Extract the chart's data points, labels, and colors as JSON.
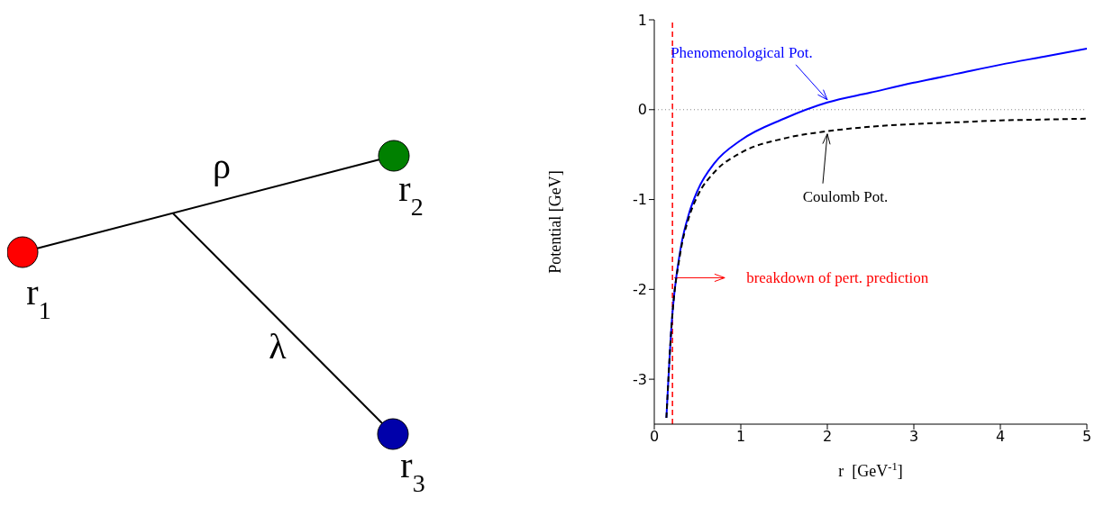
{
  "chart_data": [
    {
      "type": "other",
      "annotations": [
        "ρ",
        "λ",
        "r$_{1}$",
        "r$_{2}$",
        "r$_{3}$"
      ]
    },
    {
      "type": "line",
      "xlabel": "r  [GeV$^{-1}$]",
      "ylabel": "Potential    [GeV]",
      "x": [
        0.14,
        0.2,
        0.3,
        0.4,
        0.5,
        0.7,
        1,
        1.5,
        2,
        2.5,
        3,
        3.5,
        4,
        4.5,
        5
      ],
      "series": [
        {
          "name": "Phenomenological Pot.",
          "color": "#0000ff",
          "line_style": "solid",
          "values": [
            -3.43,
            -2.39,
            -1.57,
            -1.16,
            -0.9,
            -0.59,
            -0.34,
            -0.1,
            0.08,
            0.19,
            0.3,
            0.4,
            0.5,
            0.59,
            0.68
          ]
        },
        {
          "name": "Coulomb Pot.",
          "color": "#000000",
          "line_style": "dashed",
          "values": [
            -3.43,
            -2.4,
            -1.6,
            -1.2,
            -0.96,
            -0.69,
            -0.48,
            -0.32,
            -0.24,
            -0.19,
            -0.16,
            -0.14,
            -0.12,
            -0.11,
            -0.1
          ]
        }
      ],
      "xlim": [
        0,
        5
      ],
      "xticks": [
        0,
        1,
        2,
        3,
        4,
        5
      ],
      "ylim": [
        -3.5,
        1
      ],
      "yticks": [
        -3,
        -2,
        -1,
        0,
        1
      ],
      "marker": "none",
      "ref_lines": [
        {
          "axis": "x",
          "value": 0.21,
          "color": "#ff0000",
          "line_style": "dashed"
        },
        {
          "axis": "y",
          "value": 0,
          "color": "#888888",
          "line_style": "dotted"
        }
      ],
      "annotations": [
        "breakdown of pert. prediction"
      ]
    }
  ]
}
